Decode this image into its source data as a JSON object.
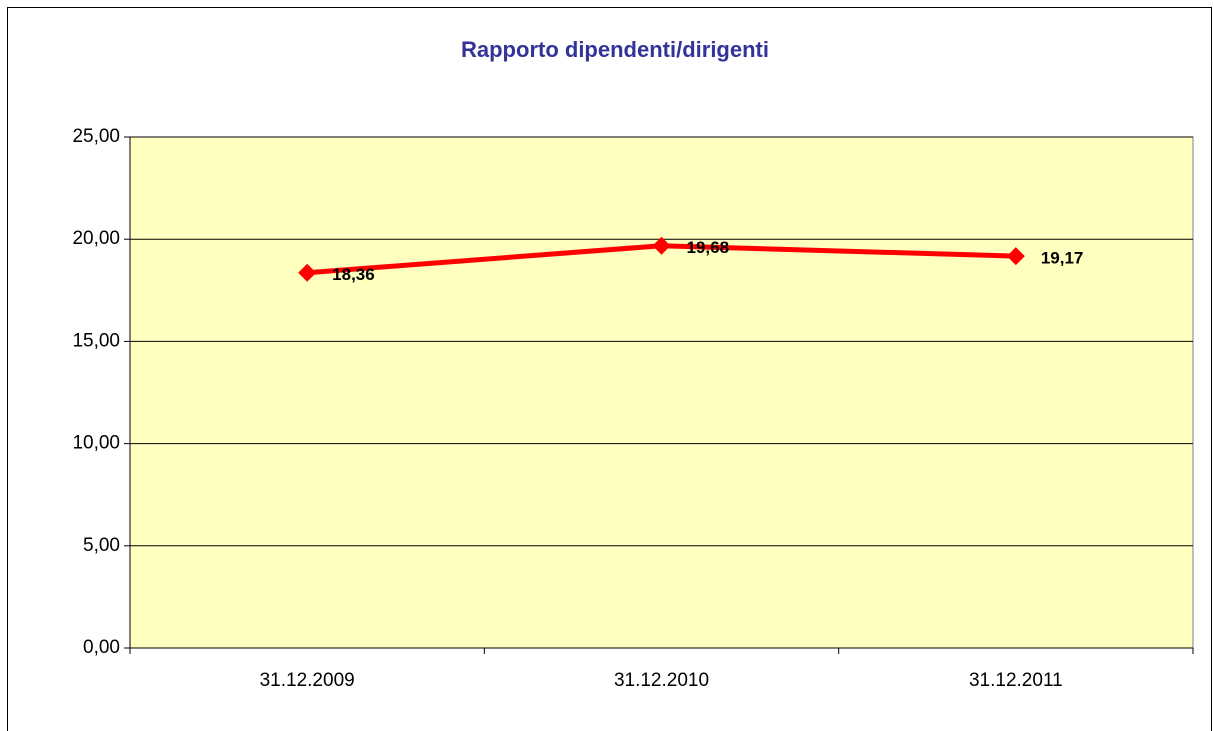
{
  "chart_data": {
    "type": "line",
    "title": "Rapporto dipendenti/dirigenti",
    "categories": [
      "31.12.2009",
      "31.12.2010",
      "31.12.2011"
    ],
    "series": [
      {
        "values": [
          18.36,
          19.68,
          19.17
        ],
        "value_labels": [
          "18,36",
          "19,68",
          "19,17"
        ],
        "color": "#ff0000"
      }
    ],
    "ylim": [
      0,
      25
    ],
    "yticks": [
      {
        "value": 0,
        "label": "0,00"
      },
      {
        "value": 5,
        "label": "5,00"
      },
      {
        "value": 10,
        "label": "10,00"
      },
      {
        "value": 15,
        "label": "15,00"
      },
      {
        "value": 20,
        "label": "20,00"
      },
      {
        "value": 25,
        "label": "25,00"
      }
    ],
    "grid": true,
    "plot_background": "#ffffc0"
  }
}
